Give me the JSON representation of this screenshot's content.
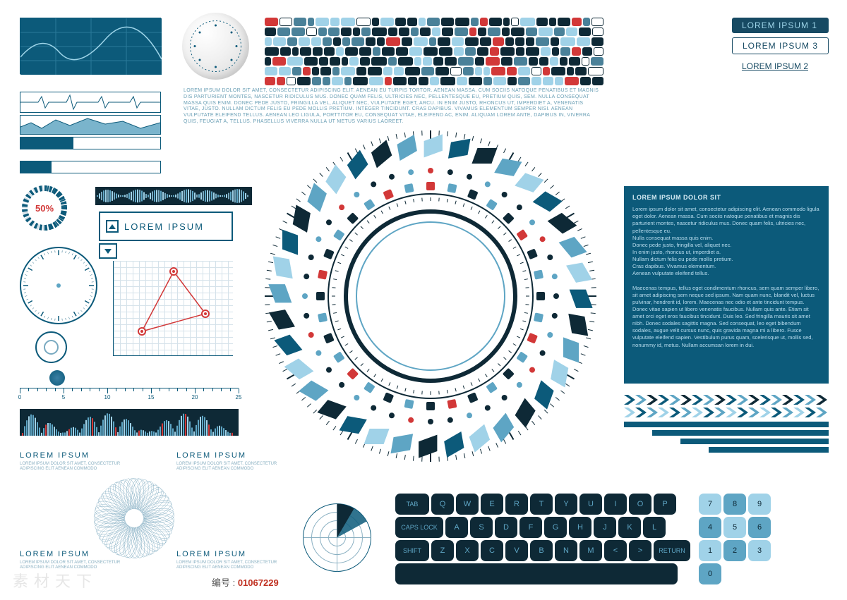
{
  "colors": {
    "dark": "#0c5a7a",
    "navy": "#0e2936",
    "mid": "#5ea5c4",
    "light": "#a0d2e8",
    "red": "#d23838",
    "white": "#ffffff",
    "grey": "#8ab0c2"
  },
  "pills": [
    {
      "text": "LOREM IPSUM 1",
      "style": "dark"
    },
    {
      "text": "LOREM IPSUM 3",
      "style": "light"
    },
    {
      "text": "LOREM IPSUM 2",
      "style": "underline"
    }
  ],
  "para": "LOREM IPSUM DOLOR SIT AMET, CONSECTETUR ADIPISCING ELIT. AENEAN EU TURPIS TORTOR. AENEAN MASSA. CUM SOCIIS NATOQUE PENATIBUS ET MAGNIS DIS PARTURIENT MONTES, NASCETUR RIDICULUS MUS. DONEC QUAM FELIS, ULTRICIES NEC, PELLENTESQUE EU, PRETIUM QUIS, SEM. NULLA CONSEQUAT MASSA QUIS ENIM. DONEC PEDE JUSTO, FRINGILLA VEL, ALIQUET NEC, VULPUTATE EGET, ARCU. IN ENIM JUSTO, RHONCUS UT, IMPERDIET A, VENENATIS VITAE, JUSTO. NULLAM DICTUM FELIS EU PEDE MOLLIS PRETIUM. INTEGER TINCIDUNT. CRAS DAPIBUS. VIVAMUS ELEMENTUM SEMPER NISI. AENEAN VULPUTATE ELEIFEND TELLUS. AENEAN LEO LIGULA, PORTTITOR EU, CONSEQUAT VITAE, ELEIFEND AC, ENIM. ALIQUAM LOREM ANTE, DAPIBUS IN, VIVERRA QUIS, FEUGIAT A, TELLUS. PHASELLUS VIVERRA NULLA UT METUS VARIUS LAOREET.",
  "donut": {
    "percent": 50,
    "label": "50%"
  },
  "li_box": {
    "label": "LOREM IPSUM"
  },
  "bar_split": {
    "a": 38,
    "b": 22
  },
  "ruler": {
    "ticks": [
      0,
      5,
      10,
      15,
      20,
      25
    ]
  },
  "lh": [
    {
      "title": "LOREM IPSUM",
      "sub": "LOREM IPSUM DOLOR SIT AMET, CONSECTETUR ADIPISCING ELIT AENEAN COMMODO"
    },
    {
      "title": "LOREM IPSUM",
      "sub": "LOREM IPSUM DOLOR SIT AMET, CONSECTETUR ADIPISCING ELIT AENEAN COMMODO"
    },
    {
      "title": "LOREM IPSUM",
      "sub": "LOREM IPSUM DOLOR SIT AMET, CONSECTETUR ADIPISCING ELIT AENEAN COMMODO"
    },
    {
      "title": "LOREM IPSUM",
      "sub": "LOREM IPSUM DOLOR SIT AMET, CONSECTETUR ADIPISCING ELIT AENEAN COMMODO"
    }
  ],
  "rpanel": {
    "title": "LOREM IPSUM DOLOR SIT",
    "body": "Lorem ipsum dolor sit amet, consectetur adipiscing elit. Aenean commodo ligula eget dolor. Aenean massa. Cum sociis natoque penatibus et magnis dis parturient montes, nascetur ridiculus mus. Donec quam felis, ultricies nec, pellentesque eu.\nNulla consequat massa quis enim.\nDonec pede justo, fringilla vel, aliquet nec.\nIn enim justo, rhoncus ut, imperdiet a.\nNullam dictum felis eu pede mollis pretium.\nCras dapibus. Vivamus elementum.\nAenean vulputate eleifend tellus.\n\nMaecenas tempus, tellus eget condimentum rhoncus, sem quam semper libero, sit amet adipiscing sem neque sed ipsum. Nam quam nunc, blandit vel, luctus pulvinar, hendrerit id, lorem. Maecenas nec odio et ante tincidunt tempus. Donec vitae sapien ut libero venenatis faucibus. Nullam quis ante. Etiam sit amet orci eget eros faucibus tincidunt. Duis leo. Sed fringilla mauris sit amet nibh. Donec sodales sagittis magna. Sed consequat, leo eget bibendum sodales, augue velit cursus nunc, quis gravida magna mi a libero. Fusce vulputate eleifend sapien. Vestibulum purus quam, scelerisque ut, mollis sed, nonummy id, metus. Nullam accumsan lorem in dui."
  },
  "keyboard": {
    "row1_mod": "TAB",
    "row1": [
      "Q",
      "W",
      "E",
      "R",
      "T",
      "Y",
      "U",
      "I",
      "O",
      "P"
    ],
    "row2_mod": "CAPS LOCK",
    "row2": [
      "A",
      "S",
      "D",
      "F",
      "G",
      "H",
      "J",
      "K",
      "L"
    ],
    "row3_mod": "SHIFT",
    "row3": [
      "Z",
      "X",
      "C",
      "V",
      "B",
      "N",
      "M",
      "<",
      ">"
    ],
    "row3_mod2": "RETURN",
    "numpad": [
      [
        "7",
        "8",
        "9"
      ],
      [
        "4",
        "5",
        "6"
      ],
      [
        "1",
        "2",
        "3"
      ],
      [
        "0",
        "",
        ""
      ]
    ]
  },
  "gridchart": {
    "points": [
      [
        40,
        100
      ],
      [
        85,
        15
      ],
      [
        130,
        75
      ]
    ],
    "line_color": "#d23838",
    "point_color": "#d23838"
  },
  "barcode": {
    "rows": 7,
    "cols": 28,
    "palette": [
      "#0e2936",
      "#4a8199",
      "#a0d2e8",
      "#d23838",
      "#ffffff"
    ],
    "weights": [
      45,
      20,
      18,
      10,
      7
    ]
  },
  "watermark": "素材天下",
  "id_label": "编号 : ",
  "id_value": "01067229"
}
